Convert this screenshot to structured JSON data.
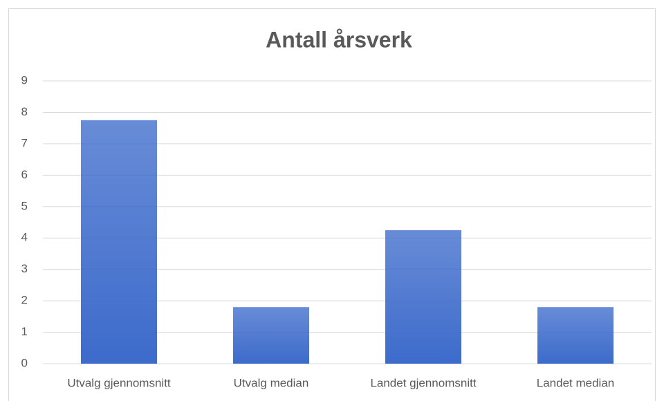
{
  "chart_data": {
    "type": "bar",
    "title": "Antall årsverk",
    "categories": [
      "Utvalg gjennomsnitt",
      "Utvalg median",
      "Landet gjennomsnitt",
      "Landet median"
    ],
    "values": [
      7.75,
      1.8,
      4.25,
      1.8
    ],
    "color": "#3d6bcb",
    "ylim": [
      0,
      9
    ],
    "yticks": [
      0,
      1,
      2,
      3,
      4,
      5,
      6,
      7,
      8,
      9
    ],
    "grid": true
  }
}
